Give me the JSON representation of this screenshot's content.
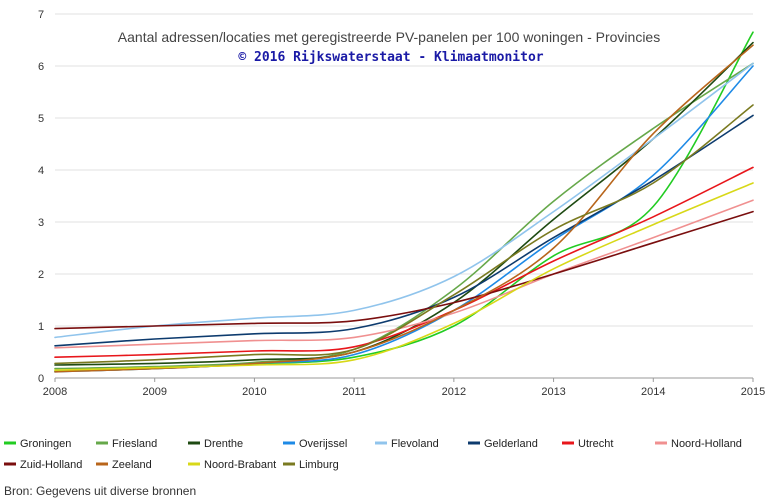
{
  "chart_data": {
    "type": "line",
    "title": "Aantal adressen/locaties met geregistreerde PV-panelen per 100 woningen - Provincies",
    "subtitle": "© 2016 Rijkswaterstaat - Klimaatmonitor",
    "xlabel": "",
    "ylabel": "",
    "x": [
      2008,
      2009,
      2010,
      2011,
      2012,
      2013,
      2014,
      2015
    ],
    "xlim": [
      2008,
      2015
    ],
    "ylim": [
      0,
      7
    ],
    "yticks": [
      0,
      1,
      2,
      3,
      4,
      5,
      6,
      7
    ],
    "grid": "horizontal",
    "legend_position": "bottom",
    "series": [
      {
        "name": "Groningen",
        "color": "#22cc22",
        "values": [
          0.13,
          0.18,
          0.27,
          0.4,
          1.0,
          2.35,
          3.3,
          6.65
        ]
      },
      {
        "name": "Friesland",
        "color": "#66a84a",
        "values": [
          0.18,
          0.22,
          0.3,
          0.55,
          1.7,
          3.4,
          4.8,
          6.05
        ]
      },
      {
        "name": "Drenthe",
        "color": "#1e4a12",
        "values": [
          0.25,
          0.28,
          0.35,
          0.5,
          1.45,
          3.05,
          4.6,
          6.45
        ]
      },
      {
        "name": "Overijssel",
        "color": "#1e8ae6",
        "values": [
          0.12,
          0.18,
          0.28,
          0.45,
          1.3,
          2.65,
          3.9,
          6.0
        ]
      },
      {
        "name": "Flevoland",
        "color": "#90c4ec",
        "values": [
          0.78,
          1.0,
          1.15,
          1.3,
          1.95,
          3.2,
          4.6,
          6.05
        ]
      },
      {
        "name": "Gelderland",
        "color": "#0d3b6e",
        "values": [
          0.62,
          0.75,
          0.85,
          0.95,
          1.55,
          2.7,
          3.8,
          5.05
        ]
      },
      {
        "name": "Utrecht",
        "color": "#e8161b",
        "values": [
          0.4,
          0.45,
          0.52,
          0.6,
          1.3,
          2.25,
          3.1,
          4.05
        ]
      },
      {
        "name": "Noord-Holland",
        "color": "#f09090",
        "values": [
          0.58,
          0.65,
          0.72,
          0.78,
          1.25,
          2.0,
          2.7,
          3.42
        ]
      },
      {
        "name": "Zuid-Holland",
        "color": "#7a0e0e",
        "values": [
          0.95,
          1.0,
          1.05,
          1.1,
          1.45,
          2.0,
          2.6,
          3.2
        ]
      },
      {
        "name": "Zeeland",
        "color": "#b8651b",
        "values": [
          0.12,
          0.18,
          0.28,
          0.5,
          1.3,
          2.5,
          4.7,
          6.4
        ]
      },
      {
        "name": "Noord-Brabant",
        "color": "#d8d818",
        "values": [
          0.15,
          0.2,
          0.25,
          0.35,
          1.05,
          2.1,
          2.95,
          3.75
        ]
      },
      {
        "name": "Limburg",
        "color": "#7a7a20",
        "values": [
          0.28,
          0.35,
          0.45,
          0.55,
          1.6,
          2.85,
          3.75,
          5.25
        ]
      }
    ]
  },
  "source": "Bron: Gegevens uit diverse bronnen"
}
